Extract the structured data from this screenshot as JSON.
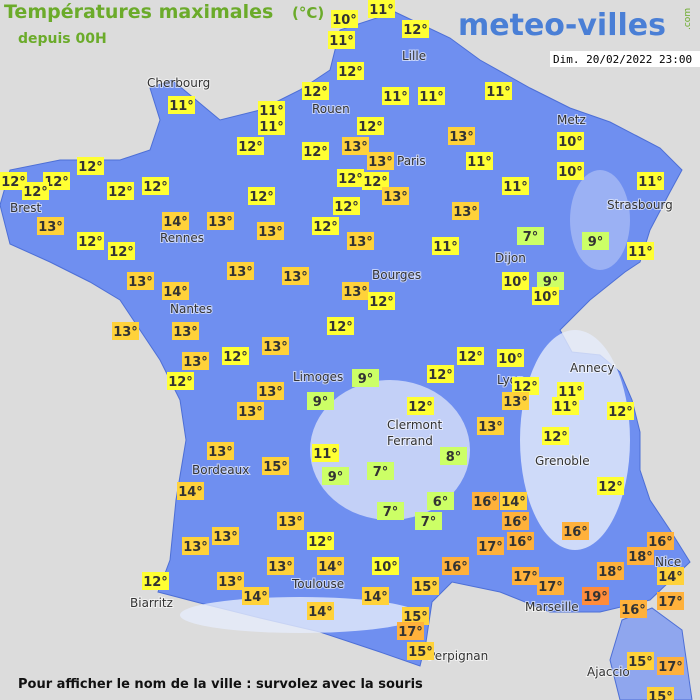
{
  "header": {
    "title": "Températures maximales",
    "unit": "(°C)",
    "subtitle": "depuis 00H",
    "logo": "meteo-villes",
    "logo_suffix": ".com",
    "datetime": "Dim. 20/02/2022 23:00"
  },
  "cities": [
    "Cherbourg",
    "Lille",
    "Rouen",
    "Paris",
    "Metz",
    "Strasbourg",
    "Brest",
    "Rennes",
    "Dijon",
    "Bourges",
    "Nantes",
    "Limoges",
    "Annecy",
    "Lyon",
    "Clermont",
    "Ferrand",
    "Grenoble",
    "Bordeaux",
    "Toulouse",
    "Biarritz",
    "Marseille",
    "Nice",
    "Perpignan",
    "Ajaccio"
  ],
  "temperatures": [
    "10°",
    "11°",
    "12°",
    "11°",
    "12°",
    "12°",
    "11°",
    "11°",
    "11°",
    "11°",
    "11°",
    "11°",
    "12°",
    "13°",
    "10°",
    "12°",
    "12°",
    "13°",
    "13°",
    "11°",
    "12°",
    "10°",
    "12°",
    "12°",
    "12°",
    "12°",
    "12°",
    "12°",
    "12°",
    "11°",
    "11°",
    "13°",
    "12°",
    "12°",
    "13°",
    "13°",
    "14°",
    "13°",
    "12°",
    "13°",
    "12°",
    "12°",
    "13°",
    "11°",
    "7°",
    "9°",
    "11°",
    "13°",
    "13°",
    "13°",
    "14°",
    "13°",
    "12°",
    "10°",
    "9°",
    "10°",
    "13°",
    "13°",
    "12°",
    "13°",
    "12°",
    "10°",
    "13°",
    "12°",
    "9°",
    "12°",
    "12°",
    "12°",
    "13°",
    "11°",
    "13°",
    "11°",
    "9°",
    "13°",
    "12°",
    "12°",
    "13°",
    "12°",
    "13°",
    "11°",
    "8°",
    "15°",
    "7°",
    "9°",
    "14°",
    "12°",
    "6°",
    "16°",
    "14°",
    "7°",
    "16°",
    "7°",
    "16°",
    "13°",
    "13°",
    "17°",
    "16°",
    "16°",
    "12°",
    "13°",
    "18°",
    "16°",
    "13°",
    "14°",
    "10°",
    "12°",
    "13°",
    "17°",
    "18°",
    "14°",
    "17°",
    "15°",
    "14°",
    "14°",
    "19°",
    "17°",
    "16°",
    "14°",
    "15°",
    "17°",
    "15°",
    "15°",
    "17°",
    "15°"
  ],
  "footer": "Pour afficher le nom de la ville : survolez avec la souris"
}
